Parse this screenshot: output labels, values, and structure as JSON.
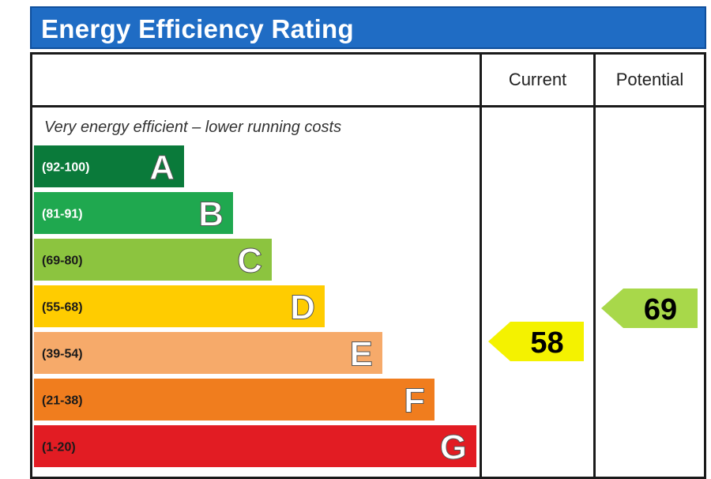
{
  "title": "Energy Efficiency Rating",
  "columns": {
    "current": "Current",
    "potential": "Potential"
  },
  "top_note": "Very energy efficient – lower running costs",
  "colors": {
    "A": "#0a7a3a",
    "B": "#1fa84f",
    "C": "#8cc43f",
    "D": "#ffcc00",
    "E": "#f6aa6a",
    "F": "#f07d1e",
    "G": "#e21c23",
    "current_arrow": "#f4f200",
    "potential_arrow": "#a8d84a"
  },
  "chart_data": {
    "type": "bar",
    "categories": [
      "A",
      "B",
      "C",
      "D",
      "E",
      "F",
      "G"
    ],
    "ranges": [
      "(92-100)",
      "(81-91)",
      "(69-80)",
      "(55-68)",
      "(39-54)",
      "(21-38)",
      "(1-20)"
    ],
    "current": {
      "value": 58,
      "label": "58"
    },
    "potential": {
      "value": 69,
      "label": "69"
    }
  }
}
